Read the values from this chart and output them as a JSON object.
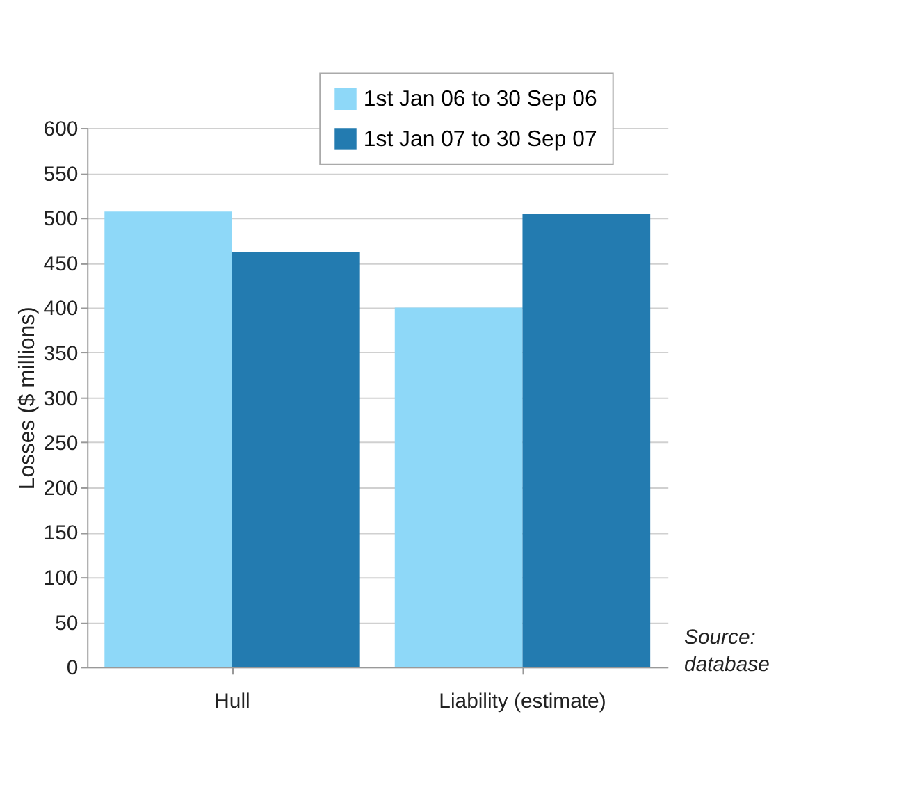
{
  "chart_data": {
    "type": "bar",
    "ylabel": "Losses ($ millions)",
    "categories": [
      "Hull",
      "Liability (estimate)"
    ],
    "series": [
      {
        "name": "1st Jan 06 to 30 Sep 06",
        "color": "#8ed8f8",
        "values": [
          507,
          400
        ]
      },
      {
        "name": "1st Jan 07 to 30 Sep 07",
        "color": "#237bb0",
        "values": [
          462,
          504
        ]
      }
    ],
    "ylim": [
      0,
      600
    ],
    "yticks": [
      0,
      50,
      100,
      150,
      200,
      250,
      300,
      350,
      400,
      450,
      500,
      550,
      600
    ],
    "grid": "y",
    "legend": "top right",
    "annotations": [
      "Source:\ndatabase"
    ]
  }
}
